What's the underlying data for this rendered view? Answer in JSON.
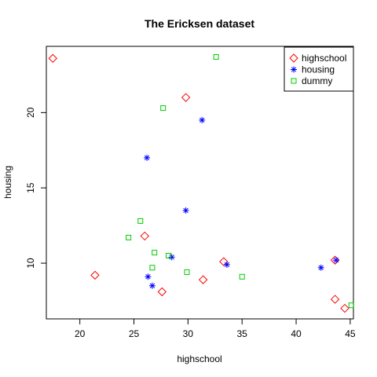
{
  "chart_data": {
    "type": "scatter",
    "title": "The Ericksen dataset",
    "xlabel": "highschool",
    "ylabel": "housing",
    "xlim": [
      16.9,
      45.3
    ],
    "ylim": [
      6.3,
      24.4
    ],
    "xticks": [
      20,
      25,
      30,
      35,
      40,
      45
    ],
    "yticks": [
      10,
      15,
      20
    ],
    "grid": false,
    "legend_position": "top-right",
    "series": [
      {
        "name": "highschool",
        "marker": "diamond",
        "color": "#ff0000",
        "points": [
          {
            "x": 17.5,
            "y": 23.6
          },
          {
            "x": 29.8,
            "y": 21.0
          },
          {
            "x": 26.0,
            "y": 11.8
          },
          {
            "x": 21.4,
            "y": 9.2
          },
          {
            "x": 27.6,
            "y": 8.1
          },
          {
            "x": 31.4,
            "y": 8.9
          },
          {
            "x": 33.3,
            "y": 10.1
          },
          {
            "x": 43.6,
            "y": 10.2
          },
          {
            "x": 43.6,
            "y": 7.6
          },
          {
            "x": 44.5,
            "y": 7.0
          }
        ]
      },
      {
        "name": "housing",
        "marker": "asterisk",
        "color": "#0000ff",
        "points": [
          {
            "x": 31.3,
            "y": 19.5
          },
          {
            "x": 26.2,
            "y": 17.0
          },
          {
            "x": 29.8,
            "y": 13.5
          },
          {
            "x": 28.5,
            "y": 10.4
          },
          {
            "x": 26.3,
            "y": 9.1
          },
          {
            "x": 26.7,
            "y": 8.5
          },
          {
            "x": 33.6,
            "y": 9.9
          },
          {
            "x": 42.3,
            "y": 9.7
          },
          {
            "x": 43.7,
            "y": 10.2
          }
        ]
      },
      {
        "name": "dummy",
        "marker": "square",
        "color": "#00cc00",
        "points": [
          {
            "x": 32.6,
            "y": 23.7
          },
          {
            "x": 27.7,
            "y": 20.3
          },
          {
            "x": 25.6,
            "y": 12.8
          },
          {
            "x": 24.5,
            "y": 11.7
          },
          {
            "x": 26.9,
            "y": 10.7
          },
          {
            "x": 28.2,
            "y": 10.5
          },
          {
            "x": 26.7,
            "y": 9.7
          },
          {
            "x": 29.9,
            "y": 9.4
          },
          {
            "x": 35.0,
            "y": 9.1
          },
          {
            "x": 45.1,
            "y": 7.2
          }
        ]
      }
    ]
  }
}
